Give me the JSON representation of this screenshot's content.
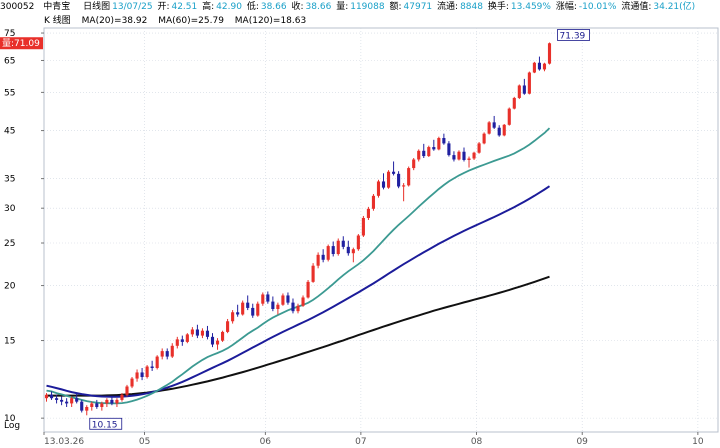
{
  "header": {
    "code": "300052",
    "name": "中青宝",
    "period_label": "日线图",
    "date": "13/07/25",
    "open_label": "开:",
    "open": "42.51",
    "high_label": "高:",
    "high": "42.90",
    "low_label": "低:",
    "low": "38.66",
    "close_label": "收:",
    "close": "38.66",
    "volume_label": "量:",
    "volume": "119088",
    "amount_label": "额:",
    "amount": "47971",
    "float_label": "流通:",
    "float": "8848",
    "turnover_label": "换手:",
    "turnover": "13.459%",
    "change_label": "涨幅:",
    "change": "-10.01%",
    "float_value_label": "流通值:",
    "float_value": "34.21(亿)"
  },
  "legend": {
    "chart_name": "K 线图",
    "ma20": "MA(20)=38.92",
    "ma60": "MA(60)=25.79",
    "ma120": "MA(120)=18.63"
  },
  "colors": {
    "up": "#e8302a",
    "down": "#2020a0",
    "ma20": "#3c9a92",
    "ma60": "#1c1c9a",
    "ma120": "#111111",
    "grid": "#cfd6e0",
    "value_text": "#1aa0c8",
    "price_badge": "#e8302a"
  },
  "chart_data": {
    "type": "candlestick",
    "yscale": "log",
    "ylim": [
      9.3,
      77
    ],
    "yticks": [
      10,
      15,
      20,
      25,
      30,
      35,
      45,
      55,
      65,
      75
    ],
    "ylabel": "Log",
    "x_tick_labels": [
      {
        "label": "13.03.26",
        "index": 0
      },
      {
        "label": "05",
        "index": 20
      },
      {
        "label": "06",
        "index": 44
      },
      {
        "label": "07",
        "index": 63
      },
      {
        "label": "08",
        "index": 86
      },
      {
        "label": "09",
        "index": 107
      },
      {
        "label": "10",
        "index": 130
      }
    ],
    "x_max_index": 134,
    "current_price_label": "量:71.09",
    "max_annotation": {
      "label": "71.39",
      "index": 101,
      "value": 71.39
    },
    "min_annotation": {
      "label": "10.15",
      "index": 8,
      "value": 10.15
    },
    "candles": [
      [
        11.1,
        11.4,
        10.9,
        11.3
      ],
      [
        11.3,
        11.5,
        11.0,
        11.1
      ],
      [
        11.1,
        11.3,
        10.8,
        11.0
      ],
      [
        11.0,
        11.2,
        10.7,
        10.9
      ],
      [
        10.9,
        11.1,
        10.6,
        10.8
      ],
      [
        10.8,
        11.2,
        10.6,
        11.1
      ],
      [
        11.1,
        11.4,
        10.8,
        10.9
      ],
      [
        10.9,
        11.0,
        10.3,
        10.4
      ],
      [
        10.4,
        10.7,
        10.15,
        10.6
      ],
      [
        10.6,
        10.9,
        10.4,
        10.8
      ],
      [
        10.8,
        11.0,
        10.5,
        10.6
      ],
      [
        10.6,
        10.9,
        10.4,
        10.8
      ],
      [
        10.8,
        11.1,
        10.6,
        11.0
      ],
      [
        11.0,
        11.2,
        10.7,
        10.8
      ],
      [
        10.8,
        11.1,
        10.6,
        11.0
      ],
      [
        11.0,
        11.4,
        10.9,
        11.3
      ],
      [
        11.3,
        11.9,
        11.2,
        11.8
      ],
      [
        11.8,
        12.4,
        11.7,
        12.3
      ],
      [
        12.3,
        12.9,
        12.1,
        12.7
      ],
      [
        12.7,
        13.0,
        12.2,
        12.4
      ],
      [
        12.4,
        13.2,
        12.3,
        13.1
      ],
      [
        13.1,
        13.5,
        12.8,
        13.0
      ],
      [
        13.0,
        13.9,
        12.9,
        13.8
      ],
      [
        13.8,
        14.4,
        13.6,
        14.2
      ],
      [
        14.2,
        14.4,
        13.6,
        13.8
      ],
      [
        13.8,
        14.8,
        13.7,
        14.6
      ],
      [
        14.6,
        15.3,
        14.4,
        15.1
      ],
      [
        15.1,
        15.4,
        14.6,
        14.9
      ],
      [
        14.9,
        15.6,
        14.8,
        15.5
      ],
      [
        15.5,
        16.1,
        15.3,
        15.9
      ],
      [
        15.9,
        16.3,
        15.2,
        15.4
      ],
      [
        15.4,
        16.0,
        15.2,
        15.8
      ],
      [
        15.8,
        16.2,
        15.1,
        15.3
      ],
      [
        15.3,
        15.6,
        14.5,
        14.7
      ],
      [
        14.7,
        15.2,
        14.3,
        15.0
      ],
      [
        15.0,
        15.8,
        14.9,
        15.7
      ],
      [
        15.7,
        16.8,
        15.6,
        16.6
      ],
      [
        16.6,
        17.6,
        16.4,
        17.4
      ],
      [
        17.4,
        18.1,
        17.0,
        17.2
      ],
      [
        17.2,
        18.5,
        17.1,
        18.3
      ],
      [
        18.3,
        19.0,
        17.6,
        17.8
      ],
      [
        17.8,
        18.2,
        16.9,
        17.1
      ],
      [
        17.1,
        18.4,
        17.0,
        18.2
      ],
      [
        18.2,
        19.3,
        18.0,
        19.1
      ],
      [
        19.1,
        19.4,
        18.2,
        18.4
      ],
      [
        18.4,
        18.9,
        17.5,
        17.7
      ],
      [
        17.7,
        18.3,
        17.2,
        18.1
      ],
      [
        18.1,
        19.2,
        18.0,
        19.0
      ],
      [
        19.0,
        19.3,
        18.1,
        18.3
      ],
      [
        18.3,
        18.7,
        17.3,
        17.5
      ],
      [
        17.5,
        18.2,
        17.3,
        18.0
      ],
      [
        18.0,
        19.0,
        17.9,
        18.8
      ],
      [
        18.8,
        20.6,
        18.7,
        20.4
      ],
      [
        20.4,
        22.5,
        20.3,
        22.2
      ],
      [
        22.2,
        23.8,
        21.9,
        23.5
      ],
      [
        23.5,
        24.2,
        22.6,
        22.9
      ],
      [
        22.9,
        24.8,
        22.7,
        24.6
      ],
      [
        24.6,
        25.2,
        23.3,
        23.6
      ],
      [
        23.6,
        25.6,
        23.4,
        25.3
      ],
      [
        25.3,
        25.9,
        24.2,
        24.5
      ],
      [
        24.5,
        25.3,
        23.4,
        23.7
      ],
      [
        23.7,
        24.4,
        22.6,
        24.2
      ],
      [
        24.2,
        26.2,
        24.0,
        26.0
      ],
      [
        26.0,
        28.8,
        25.8,
        28.5
      ],
      [
        28.5,
        30.2,
        28.2,
        29.9
      ],
      [
        29.9,
        32.3,
        29.6,
        32.0
      ],
      [
        32.0,
        34.8,
        31.7,
        34.5
      ],
      [
        34.5,
        36.0,
        33.1,
        33.4
      ],
      [
        33.4,
        36.6,
        33.2,
        36.3
      ],
      [
        36.3,
        38.3,
        35.6,
        35.9
      ],
      [
        35.9,
        36.4,
        33.3,
        33.6
      ],
      [
        33.6,
        34.2,
        31.1,
        33.8
      ],
      [
        33.8,
        37.3,
        33.6,
        37.0
      ],
      [
        37.0,
        39.0,
        36.6,
        38.7
      ],
      [
        38.7,
        40.8,
        38.3,
        40.5
      ],
      [
        40.5,
        42.0,
        39.0,
        39.4
      ],
      [
        39.4,
        41.6,
        39.2,
        41.3
      ],
      [
        41.3,
        42.9,
        40.5,
        40.8
      ],
      [
        40.8,
        43.6,
        40.6,
        43.3
      ],
      [
        43.3,
        44.3,
        41.8,
        42.1
      ],
      [
        42.1,
        42.6,
        39.3,
        39.6
      ],
      [
        39.6,
        40.4,
        38.3,
        38.7
      ],
      [
        38.7,
        40.6,
        38.5,
        40.3
      ],
      [
        40.3,
        41.2,
        38.3,
        38.6
      ],
      [
        38.6,
        39.3,
        37.1,
        38.9
      ],
      [
        38.9,
        40.3,
        38.6,
        40.1
      ],
      [
        40.1,
        42.4,
        39.9,
        42.1
      ],
      [
        42.1,
        44.6,
        41.9,
        44.3
      ],
      [
        44.3,
        47.3,
        44.1,
        47.0
      ],
      [
        47.0,
        48.6,
        45.4,
        45.7
      ],
      [
        45.7,
        46.3,
        43.6,
        43.9
      ],
      [
        43.9,
        46.6,
        43.7,
        46.4
      ],
      [
        46.4,
        50.8,
        46.2,
        50.5
      ],
      [
        50.5,
        53.7,
        50.3,
        53.4
      ],
      [
        53.4,
        57.3,
        53.1,
        57.0
      ],
      [
        57.0,
        59.0,
        54.3,
        54.6
      ],
      [
        54.6,
        61.3,
        54.4,
        61.0
      ],
      [
        61.0,
        64.5,
        60.8,
        64.2
      ],
      [
        64.2,
        66.3,
        61.6,
        62.0
      ],
      [
        62.0,
        64.2,
        61.4,
        63.9
      ],
      [
        63.9,
        71.39,
        63.6,
        71.1
      ]
    ],
    "ma20": [
      11.55,
      11.5,
      11.4,
      11.32,
      11.24,
      11.16,
      11.08,
      11.0,
      10.93,
      10.88,
      10.84,
      10.82,
      10.81,
      10.8,
      10.8,
      10.82,
      10.86,
      10.93,
      11.02,
      11.12,
      11.24,
      11.38,
      11.54,
      11.72,
      11.9,
      12.1,
      12.34,
      12.58,
      12.84,
      13.1,
      13.34,
      13.56,
      13.76,
      13.92,
      14.06,
      14.22,
      14.42,
      14.66,
      14.94,
      15.24,
      15.54,
      15.8,
      16.06,
      16.36,
      16.66,
      16.92,
      17.14,
      17.36,
      17.58,
      17.76,
      17.92,
      18.08,
      18.28,
      18.56,
      18.92,
      19.32,
      19.74,
      20.18,
      20.66,
      21.12,
      21.56,
      21.96,
      22.38,
      22.84,
      23.38,
      23.98,
      24.66,
      25.36,
      26.08,
      26.8,
      27.48,
      28.12,
      28.8,
      29.5,
      30.24,
      30.96,
      31.7,
      32.42,
      33.16,
      33.86,
      34.5,
      35.06,
      35.6,
      36.08,
      36.52,
      36.92,
      37.3,
      37.66,
      38.04,
      38.42,
      38.78,
      39.12,
      39.5,
      39.96,
      40.52,
      41.12,
      41.84,
      42.66,
      43.56,
      44.46,
      45.6
    ],
    "ma60": [
      11.85,
      11.78,
      11.7,
      11.62,
      11.54,
      11.46,
      11.4,
      11.34,
      11.29,
      11.25,
      11.22,
      11.2,
      11.19,
      11.18,
      11.18,
      11.19,
      11.21,
      11.24,
      11.28,
      11.33,
      11.39,
      11.46,
      11.54,
      11.63,
      11.73,
      11.84,
      11.96,
      12.09,
      12.23,
      12.38,
      12.53,
      12.69,
      12.85,
      13.01,
      13.17,
      13.33,
      13.5,
      13.68,
      13.87,
      14.07,
      14.27,
      14.47,
      14.67,
      14.88,
      15.09,
      15.3,
      15.5,
      15.7,
      15.9,
      16.1,
      16.3,
      16.5,
      16.71,
      16.93,
      17.16,
      17.4,
      17.65,
      17.91,
      18.18,
      18.46,
      18.74,
      19.02,
      19.31,
      19.61,
      19.92,
      20.24,
      20.58,
      20.93,
      21.29,
      21.65,
      22.01,
      22.37,
      22.73,
      23.09,
      23.45,
      23.81,
      24.17,
      24.53,
      24.89,
      25.25,
      25.6,
      25.95,
      26.29,
      26.63,
      26.97,
      27.3,
      27.63,
      27.96,
      28.3,
      28.65,
      29.01,
      29.38,
      29.77,
      30.17,
      30.6,
      31.05,
      31.52,
      32.01,
      32.53,
      33.08,
      33.66
    ],
    "ma120": [
      11.25,
      11.25,
      11.25,
      11.25,
      11.25,
      11.25,
      11.25,
      11.25,
      11.25,
      11.25,
      11.25,
      11.25,
      11.26,
      11.27,
      11.28,
      11.3,
      11.32,
      11.34,
      11.37,
      11.4,
      11.43,
      11.47,
      11.51,
      11.56,
      11.61,
      11.66,
      11.72,
      11.78,
      11.84,
      11.91,
      11.98,
      12.05,
      12.12,
      12.2,
      12.28,
      12.36,
      12.45,
      12.54,
      12.63,
      12.72,
      12.82,
      12.92,
      13.02,
      13.12,
      13.23,
      13.34,
      13.45,
      13.56,
      13.67,
      13.78,
      13.9,
      14.02,
      14.14,
      14.26,
      14.38,
      14.5,
      14.63,
      14.76,
      14.89,
      15.02,
      15.16,
      15.3,
      15.44,
      15.58,
      15.72,
      15.86,
      16.0,
      16.14,
      16.28,
      16.42,
      16.56,
      16.7,
      16.84,
      16.98,
      17.12,
      17.26,
      17.4,
      17.54,
      17.67,
      17.8,
      17.93,
      18.06,
      18.19,
      18.32,
      18.45,
      18.58,
      18.71,
      18.84,
      18.98,
      19.12,
      19.26,
      19.41,
      19.56,
      19.72,
      19.88,
      20.05,
      20.22,
      20.4,
      20.58,
      20.77,
      20.96
    ]
  }
}
